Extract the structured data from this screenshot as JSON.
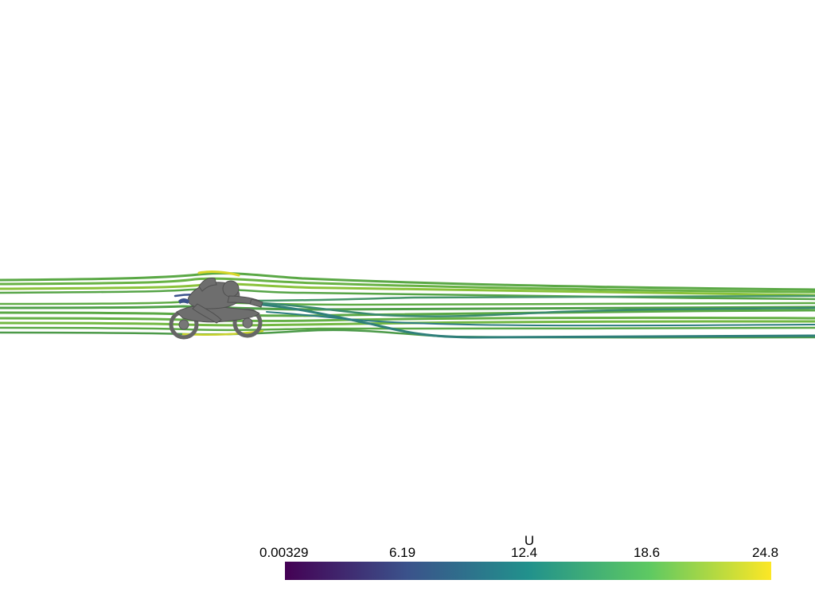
{
  "colorbar": {
    "title": "U",
    "ticks": [
      "0.00329",
      "6.19",
      "12.4",
      "18.6",
      "24.8"
    ],
    "colormap": "viridis",
    "stops": [
      "#440154",
      "#3b528b",
      "#21918c",
      "#5ec962",
      "#fde725"
    ]
  },
  "scene": {
    "object": "motorbike with rider",
    "visualization": "streamlines colored by U",
    "background_color": "#ffffff",
    "model_color": "#6e6e6e"
  }
}
